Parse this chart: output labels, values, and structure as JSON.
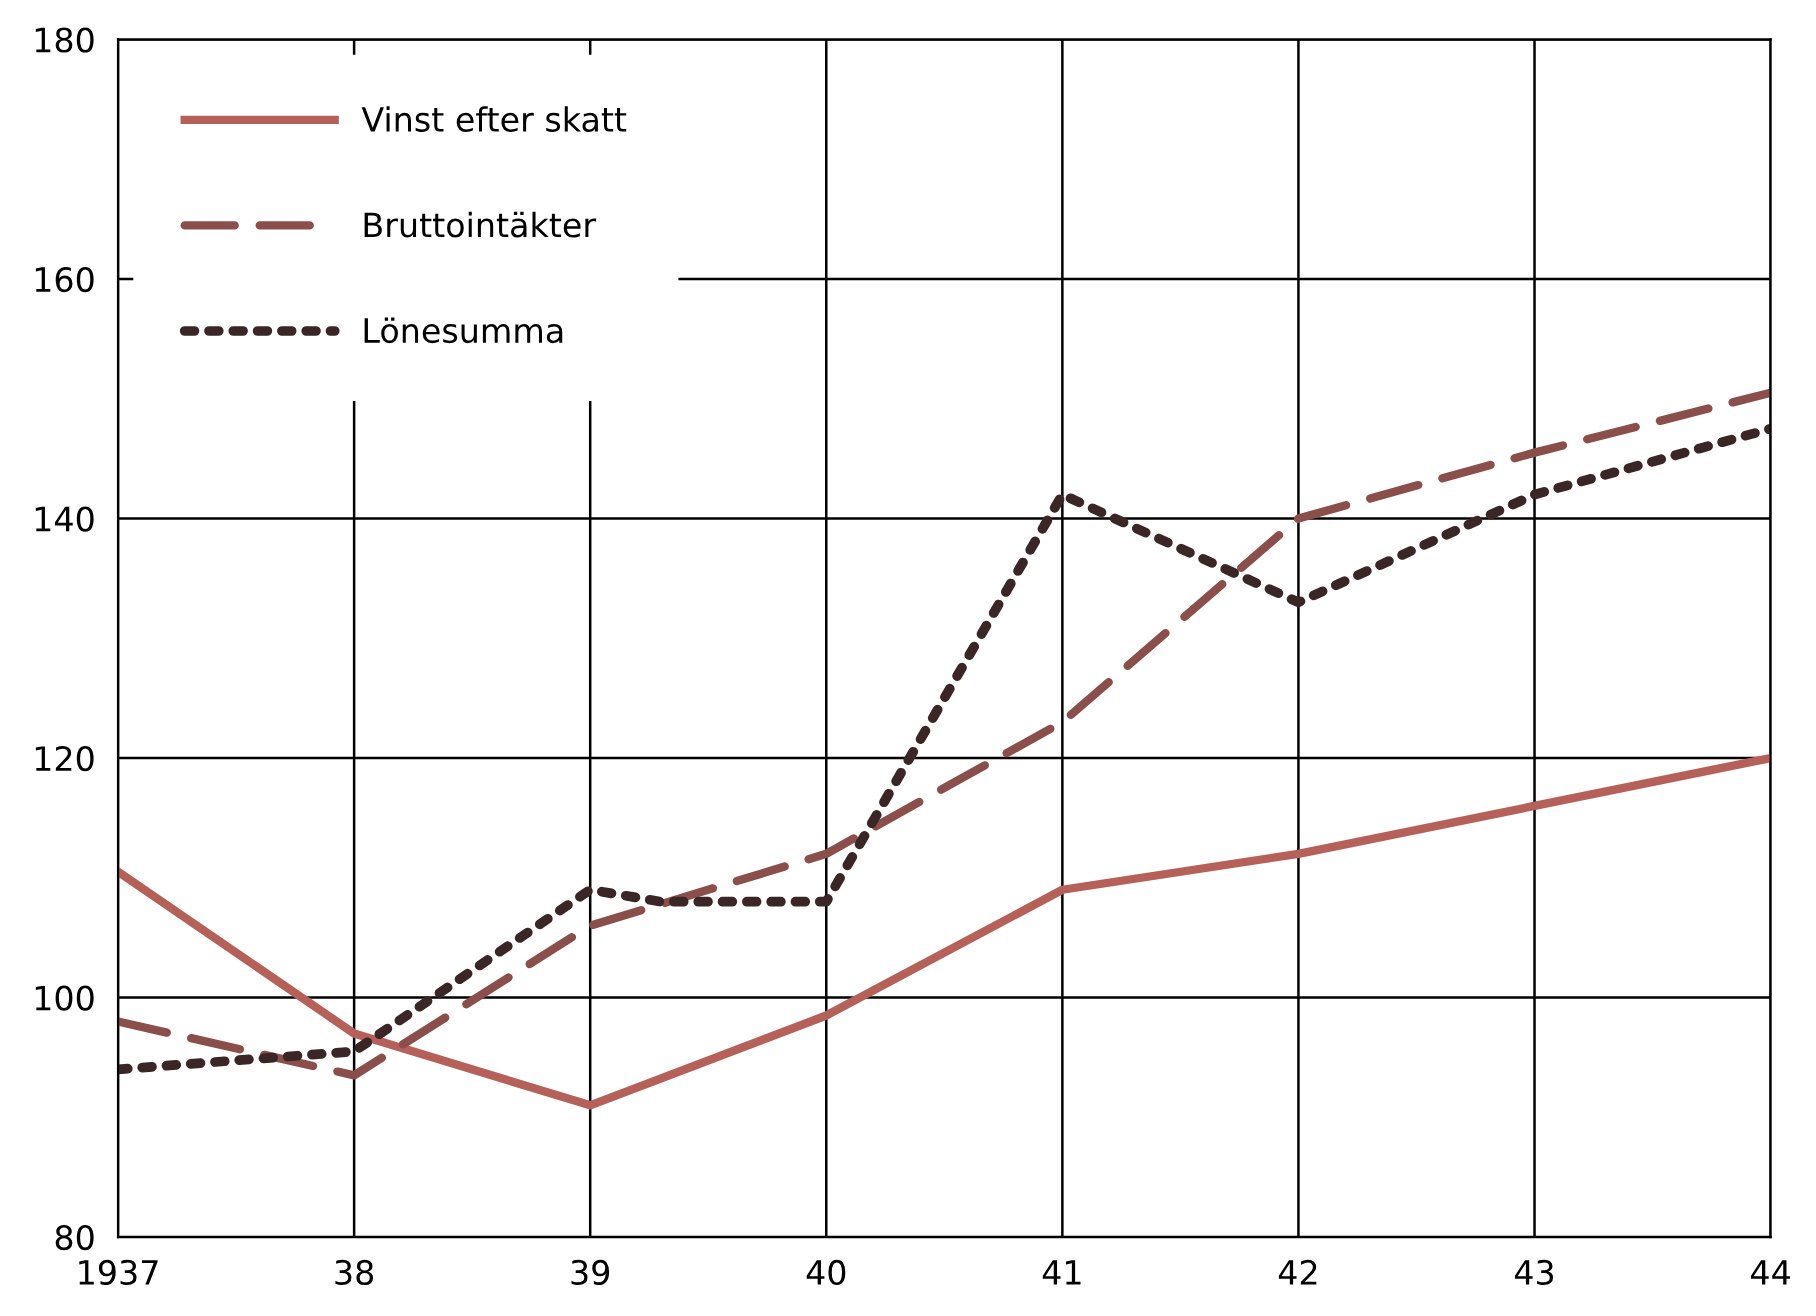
{
  "chart_data": {
    "type": "line",
    "x": [
      1937,
      1938,
      1939,
      1940,
      1941,
      1942,
      1943,
      1944
    ],
    "series": [
      {
        "name": "Vinst efter skatt",
        "color": "#b5615a",
        "line_style": "solid",
        "values": [
          110.5,
          97,
          91,
          98.5,
          109,
          112,
          116,
          120
        ]
      },
      {
        "name": "Bruttointäkter",
        "color": "#8a4f4a",
        "line_style": "dashed",
        "values": [
          98,
          93.5,
          106,
          112,
          123,
          140,
          145.5,
          150.5
        ]
      },
      {
        "name": "Lönesumma",
        "color": "#3a2626",
        "line_style": "dotted",
        "x": [
          1937,
          1938,
          1939,
          1939.3,
          1940,
          1941,
          1942,
          1943,
          1944
        ],
        "values": [
          94,
          95.5,
          109,
          108,
          108,
          142,
          133,
          142,
          147.5
        ]
      }
    ],
    "xlim": [
      1937,
      1944
    ],
    "xticks": [
      1937,
      {
        "value": 1938,
        "label": "38"
      },
      {
        "value": 1939,
        "label": "39"
      },
      {
        "value": 1940,
        "label": "40"
      },
      {
        "value": 1941,
        "label": "41"
      },
      {
        "value": 1942,
        "label": "42"
      },
      {
        "value": 1943,
        "label": "43"
      },
      {
        "value": 1944,
        "label": "44"
      }
    ],
    "ylim": [
      80,
      180
    ],
    "yticks": [
      80,
      100,
      120,
      140,
      160,
      180
    ],
    "grid": true,
    "legend": "top left"
  }
}
